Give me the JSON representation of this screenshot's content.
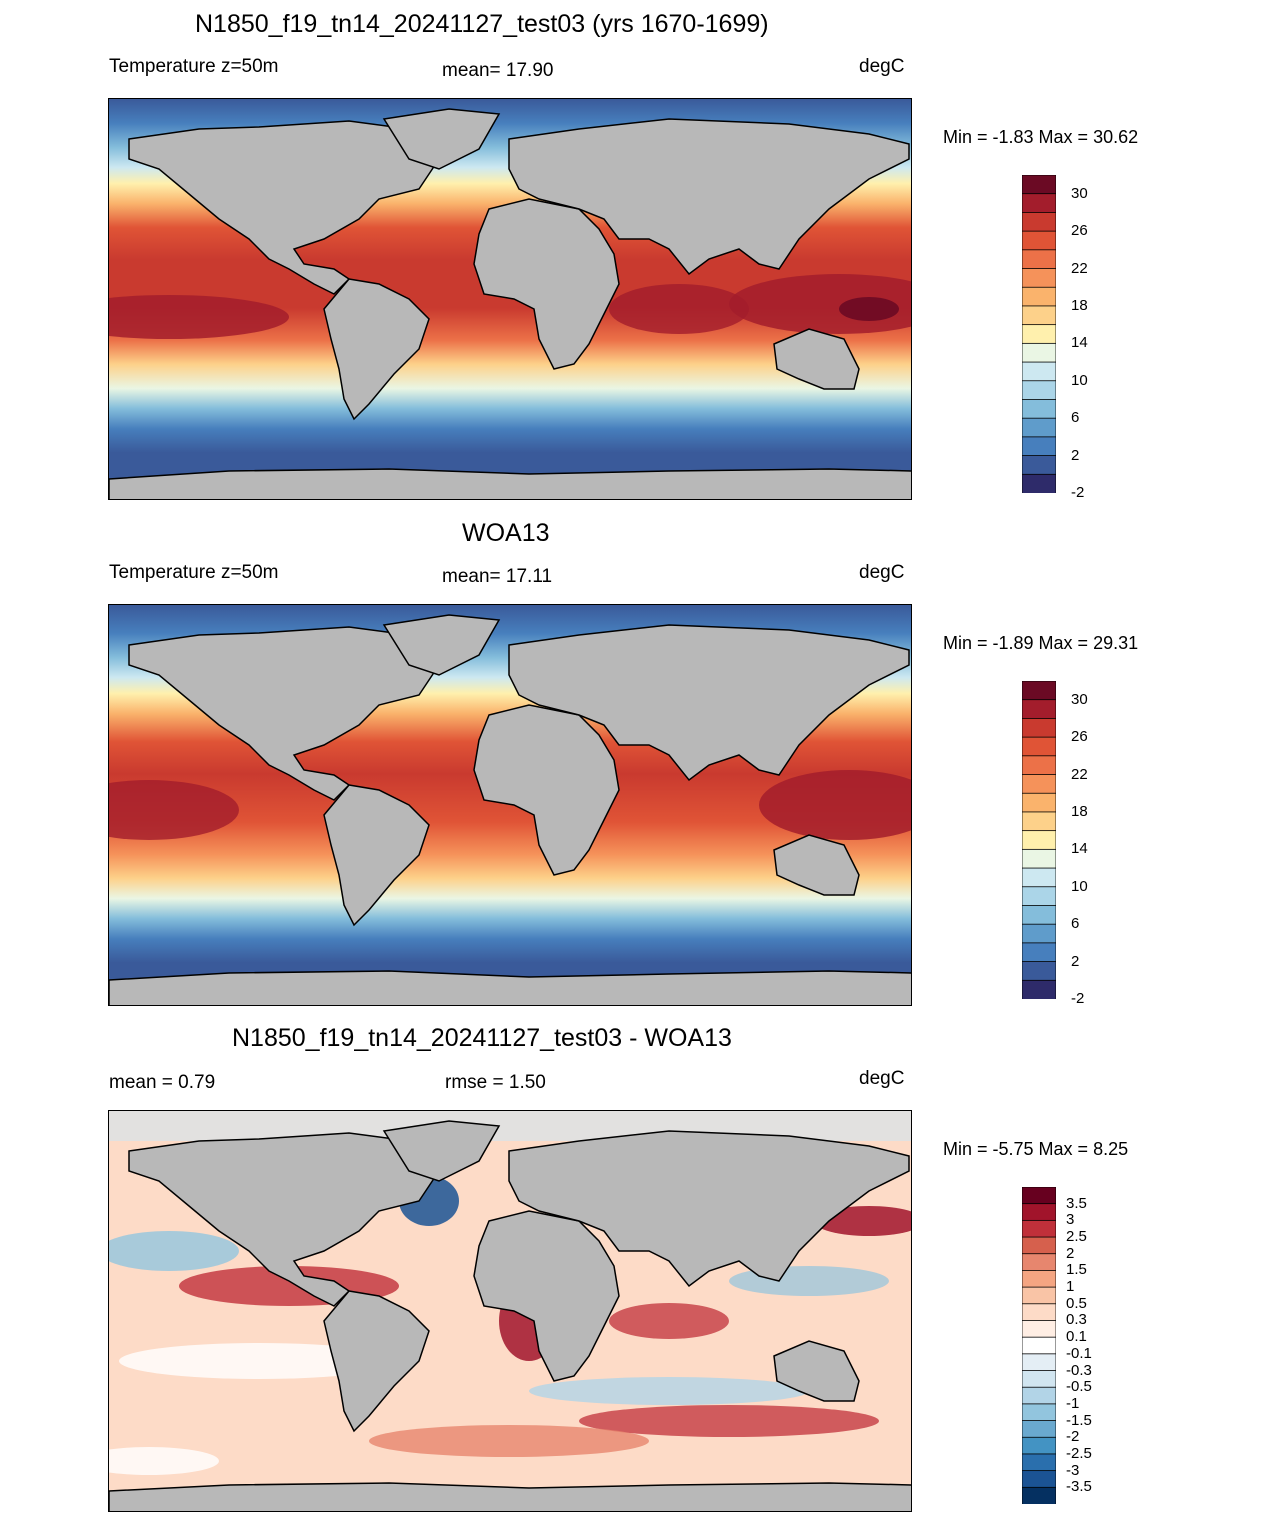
{
  "panels": [
    {
      "title": "N1850_f19_tn14_20241127_test03 (yrs 1670-1699)",
      "left_label": "Temperature z=50m",
      "center_label": "mean=  17.90",
      "right_label": "degC",
      "minmax": "Min =  -1.83 Max =  30.62"
    },
    {
      "title": "WOA13",
      "left_label": "Temperature z=50m",
      "center_label": "mean=  17.11",
      "right_label": "degC",
      "minmax": "Min =  -1.89 Max =  29.31"
    },
    {
      "title": "N1850_f19_tn14_20241127_test03 - WOA13",
      "left_label": "mean =   0.79",
      "center_label": "rmse =   1.50",
      "right_label": "degC",
      "minmax": "Min =  -5.75 Max =   8.25"
    }
  ],
  "chart_data": [
    {
      "type": "heatmap",
      "title": "N1850_f19_tn14_20241127_test03 (yrs 1670-1699)",
      "variable": "Temperature z=50m",
      "units": "degC",
      "mean": 17.9,
      "min": -1.83,
      "max": 30.62,
      "colorbar": {
        "levels": [
          -2,
          0,
          2,
          4,
          6,
          8,
          10,
          12,
          14,
          16,
          18,
          20,
          22,
          24,
          26,
          28,
          30
        ],
        "tick_labels": [
          "30",
          "26",
          "22",
          "18",
          "14",
          "10",
          "6",
          "2",
          "-2"
        ],
        "colors": [
          "#6b0a24",
          "#a31d2c",
          "#c93a2f",
          "#e05436",
          "#ec7148",
          "#f5925a",
          "#fab36c",
          "#fdd18a",
          "#fff0ad",
          "#eaf6e4",
          "#cde8f1",
          "#abd5e8",
          "#84bddb",
          "#5f9ccb",
          "#477fbd",
          "#3a5a9a",
          "#2e2b6a"
        ]
      }
    },
    {
      "type": "heatmap",
      "title": "WOA13",
      "variable": "Temperature z=50m",
      "units": "degC",
      "mean": 17.11,
      "min": -1.89,
      "max": 29.31,
      "colorbar": {
        "levels": [
          -2,
          0,
          2,
          4,
          6,
          8,
          10,
          12,
          14,
          16,
          18,
          20,
          22,
          24,
          26,
          28,
          30
        ],
        "tick_labels": [
          "30",
          "26",
          "22",
          "18",
          "14",
          "10",
          "6",
          "2",
          "-2"
        ],
        "colors": [
          "#6b0a24",
          "#a31d2c",
          "#c93a2f",
          "#e05436",
          "#ec7148",
          "#f5925a",
          "#fab36c",
          "#fdd18a",
          "#fff0ad",
          "#eaf6e4",
          "#cde8f1",
          "#abd5e8",
          "#84bddb",
          "#5f9ccb",
          "#477fbd",
          "#3a5a9a",
          "#2e2b6a"
        ]
      }
    },
    {
      "type": "heatmap",
      "title": "N1850_f19_tn14_20241127_test03 - WOA13",
      "units": "degC",
      "mean": 0.79,
      "rmse": 1.5,
      "min": -5.75,
      "max": 8.25,
      "colorbar": {
        "tick_labels": [
          "3.5",
          "3",
          "2.5",
          "2",
          "1.5",
          "1",
          "0.5",
          "0.3",
          "0.1",
          "-0.1",
          "-0.3",
          "-0.5",
          "-1",
          "-1.5",
          "-2",
          "-2.5",
          "-3",
          "-3.5"
        ],
        "colors": [
          "#67001f",
          "#a1142b",
          "#c0303a",
          "#d6604d",
          "#e7866e",
          "#f4a582",
          "#f9c4a6",
          "#fddbc7",
          "#ffeee4",
          "#ffffff",
          "#e4eef5",
          "#d1e5f0",
          "#b2d4e7",
          "#92c5de",
          "#6aa9cf",
          "#4393c3",
          "#2a6fad",
          "#1b5394",
          "#053061"
        ]
      }
    }
  ]
}
